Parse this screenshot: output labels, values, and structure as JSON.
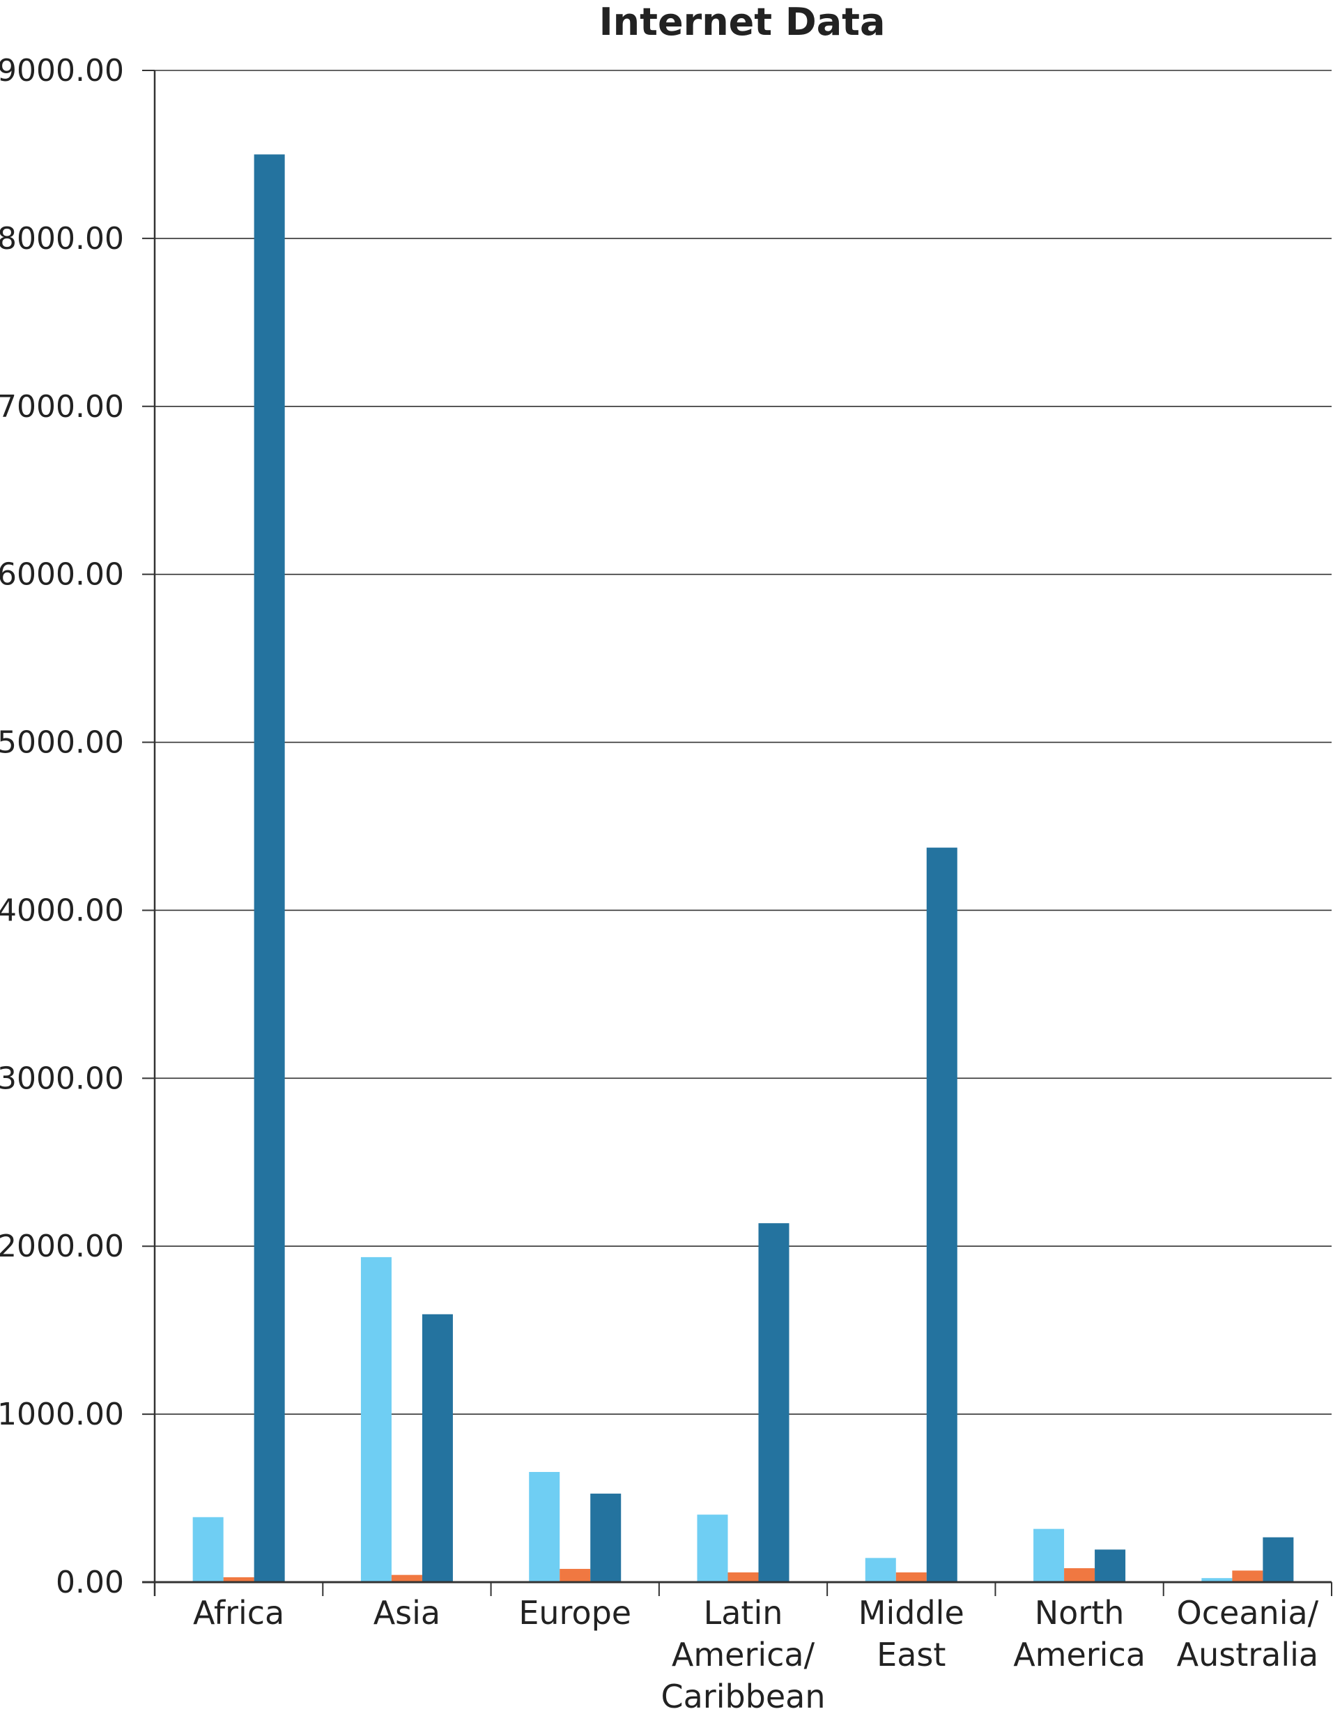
{
  "chart_data": {
    "type": "bar",
    "title": "Internet Data",
    "xlabel": "",
    "ylabel": "",
    "ylim": [
      0,
      9000
    ],
    "yticks": [
      "0.00",
      "1000.00",
      "2000.00",
      "3000.00",
      "4000.00",
      "5000.00",
      "6000.00",
      "7000.00",
      "8000.00",
      "9000.00"
    ],
    "grid": true,
    "legend": "none",
    "categories": [
      [
        "Africa"
      ],
      [
        "Asia"
      ],
      [
        "Europe"
      ],
      [
        "Latin",
        "America/",
        "Caribbean"
      ],
      [
        "Middle",
        "East"
      ],
      [
        "North",
        "America"
      ],
      [
        "Oceania/",
        "Australia"
      ]
    ],
    "series": [
      {
        "color": "#6fcef3",
        "values": [
          387,
          1935,
          656,
          402,
          144,
          317,
          24
        ]
      },
      {
        "color": "#f07841",
        "values": [
          29,
          43,
          79,
          58,
          58,
          83,
          69
        ]
      },
      {
        "color": "#24739f",
        "values": [
          8500,
          1595,
          527,
          2137,
          4373,
          194,
          267
        ]
      }
    ]
  }
}
